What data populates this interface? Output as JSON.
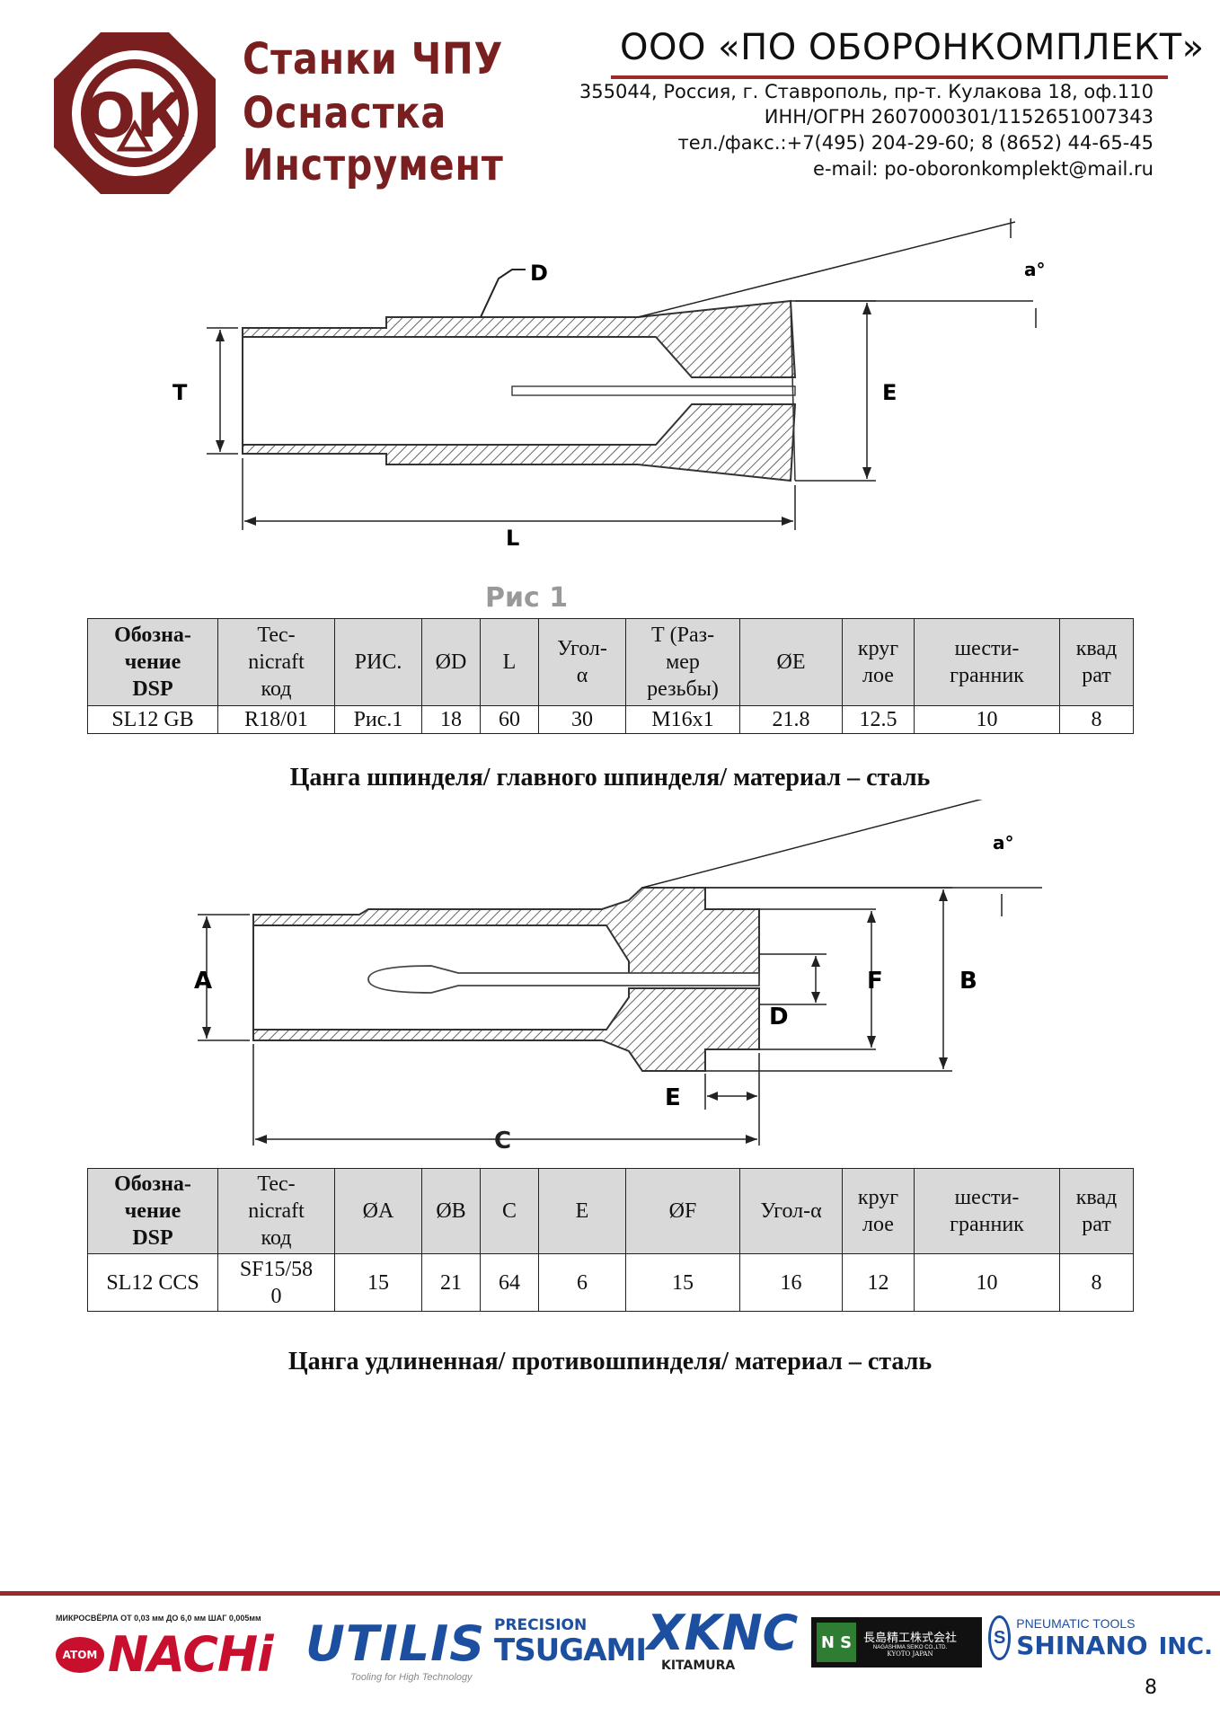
{
  "header": {
    "logo_mark": "ОК",
    "brand_lines": [
      "Станки ЧПУ",
      "Оснастка",
      "Инструмент"
    ],
    "company": "ООО «ПО ОБОРОНКОМПЛЕКТ»",
    "address": "355044, Россия, г. Ставрополь, пр-т. Кулакова 18, оф.110",
    "inn": "ИНН/ОГРН 2607000301/1152651007343",
    "phone": "тел./факс.:+7(495) 204-29-60; 8 (8652) 44-65-45",
    "email": "e-mail: po-oboronkomplekt@mail.ru"
  },
  "figure1": {
    "labels": {
      "D": "D",
      "T": "T",
      "E": "E",
      "L": "L",
      "a": "a°"
    },
    "caption": "Рис 1"
  },
  "table1": {
    "headers": {
      "designation": [
        "Обозна-",
        "чение",
        "DSP"
      ],
      "tecnicraft": [
        "Tec-",
        "nicraft",
        "код"
      ],
      "fig": "РИС.",
      "d": "ØD",
      "l": "L",
      "angle": [
        "Угол-",
        "α"
      ],
      "t": [
        "Т (Раз-",
        "мер",
        "резьбы)"
      ],
      "e": "ØE",
      "round": [
        "круг",
        "лое"
      ],
      "hex": [
        "шести-",
        "гранник"
      ],
      "square": [
        "квад",
        "рат"
      ]
    },
    "row": [
      "SL12 GB",
      "R18/01",
      "Рис.1",
      "18",
      "60",
      "30",
      "M16x1",
      "21.8",
      "12.5",
      "10",
      "8"
    ]
  },
  "caption1": "Цанга шпинделя/ главного шпинделя/ материал – сталь",
  "figure2": {
    "labels": {
      "A": "A",
      "B": "B",
      "C": "C",
      "D": "D",
      "E": "E",
      "F": "F",
      "a": "a°"
    }
  },
  "table2": {
    "headers": {
      "designation": [
        "Обозна-",
        "чение",
        "DSP"
      ],
      "tecnicraft": [
        "Tec-",
        "nicraft",
        "код"
      ],
      "a": "ØA",
      "b": "ØB",
      "c": "C",
      "e": "E",
      "f": "ØF",
      "angle": "Угол-α",
      "round": [
        "круг",
        "лое"
      ],
      "hex": [
        "шести-",
        "гранник"
      ],
      "square": [
        "квад",
        "рат"
      ]
    },
    "row": [
      "SL12 CCS",
      [
        "SF15/58",
        "0"
      ],
      "15",
      "21",
      "64",
      "6",
      "15",
      "16",
      "12",
      "10",
      "8"
    ]
  },
  "caption2": "Цанга удлиненная/ противошпинделя/ материал – сталь",
  "footer": {
    "nachi_small": "МИКРОСВЁРЛА ОТ 0,03 мм ДО 6,0 мм ШАГ 0,005мм",
    "nachi_atom": "ATOM",
    "nachi": "NACHi",
    "utilis": "UTILIS",
    "utilis_tag": "Tooling for High Technology",
    "tsugami_top": "PRECISION",
    "tsugami": "TSUGAMI",
    "xknc": "XKNC",
    "kitamura": "KITAMURA",
    "nagashima_mark": "N S",
    "nagashima_jp": "長島精工株式会社",
    "nagashima_en": "NAGASHIMA SEIKO CO.,LTD.",
    "nagashima_city": "KYOTO JAPAN",
    "shinano_top": "PNEUMATIC TOOLS",
    "shinano": "SHINANO",
    "shinano_inc": "INC.",
    "page": "8"
  },
  "colors": {
    "brand": "#7a1f1f",
    "rule": "#9b2b2b",
    "header_cell": "#d9d9d9"
  }
}
